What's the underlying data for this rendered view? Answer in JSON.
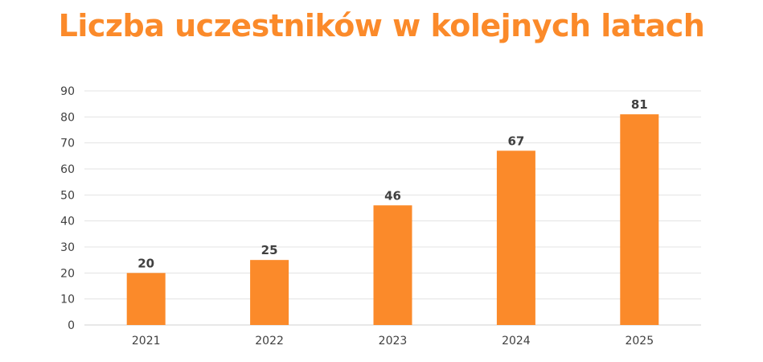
{
  "colors": {
    "accent": "#FB8A2A",
    "grid": "#E3E3E3",
    "text": "#404040"
  },
  "chart_data": {
    "type": "bar",
    "title": "Liczba uczestników w kolejnych latach",
    "xlabel": "",
    "ylabel": "",
    "categories": [
      "2021",
      "2022",
      "2023",
      "2024",
      "2025"
    ],
    "values": [
      20,
      25,
      46,
      67,
      81
    ],
    "ylim": [
      0,
      90
    ],
    "yticks": [
      0,
      10,
      20,
      30,
      40,
      50,
      60,
      70,
      80,
      90
    ],
    "grid": true,
    "legend": "none",
    "data_labels": true
  }
}
